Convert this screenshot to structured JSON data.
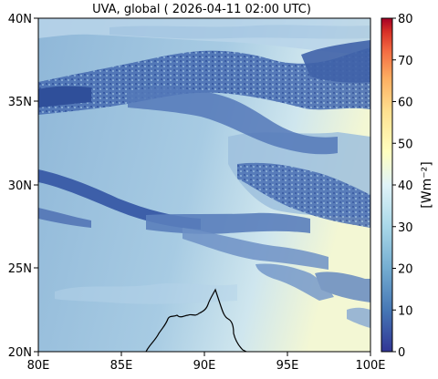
{
  "title": "UVA, global ( 2026-04-11 02:00 UTC)",
  "map": {
    "x_ticks": [
      "80E",
      "85E",
      "90E",
      "95E",
      "100E"
    ],
    "y_ticks": [
      "40N",
      "35N",
      "30N",
      "25N",
      "20N"
    ],
    "lon_range": [
      80,
      100
    ],
    "lat_range": [
      20,
      40
    ]
  },
  "colorbar": {
    "label": "[Wm⁻²]",
    "ticks": [
      "80",
      "70",
      "60",
      "50",
      "40",
      "30",
      "20",
      "10",
      "0"
    ],
    "range": [
      0,
      80
    ],
    "colors": {
      "low": "#313695",
      "mid_low": "#4575b4",
      "mid": "#abd9e9",
      "mid_high": "#ffffbf",
      "high_mid": "#f46d43",
      "high": "#a50026"
    }
  },
  "colors": {
    "background_field": "#9cc2de",
    "cloud_dense": "#3a5fa8",
    "coastline": "#000000"
  }
}
